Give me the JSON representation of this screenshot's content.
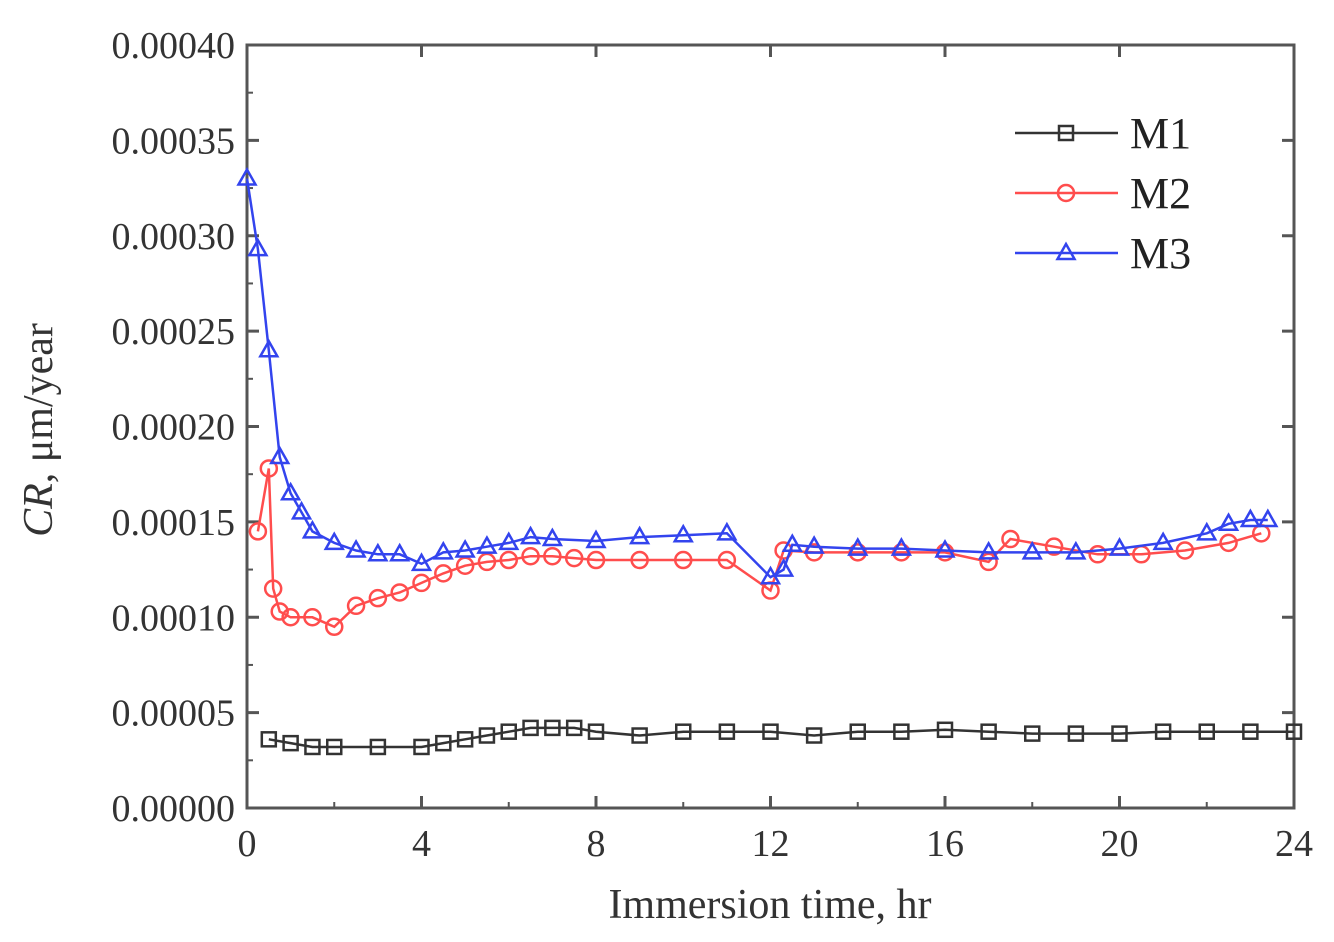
{
  "chart_data": {
    "type": "line",
    "xlabel": "Immersion time, hr",
    "ylabel_italic": "CR",
    "ylabel_rest": ", μm/year",
    "xlim": [
      0,
      24
    ],
    "ylim": [
      0,
      0.0004
    ],
    "x_ticks": [
      0,
      4,
      8,
      12,
      16,
      20,
      24
    ],
    "x_tick_labels": [
      "0",
      "4",
      "8",
      "12",
      "16",
      "20",
      "24"
    ],
    "y_ticks": [
      0,
      5e-05,
      0.0001,
      0.00015,
      0.0002,
      0.00025,
      0.0003,
      0.00035,
      0.0004
    ],
    "y_tick_labels": [
      "0.00000",
      "0.00005",
      "0.00010",
      "0.00015",
      "0.00020",
      "0.00025",
      "0.00030",
      "0.00035",
      "0.00040"
    ],
    "grid": false,
    "legend_position": "top-right",
    "series": [
      {
        "name": "M1",
        "color": "#333333",
        "marker": "square",
        "x": [
          0.5,
          1.0,
          1.5,
          2.0,
          3.0,
          4.0,
          4.5,
          5.0,
          5.5,
          6.0,
          6.5,
          7.0,
          7.5,
          8.0,
          9.0,
          10.0,
          11.0,
          12.0,
          13.0,
          14.0,
          15.0,
          16.0,
          17.0,
          18.0,
          19.0,
          20.0,
          21.0,
          22.0,
          23.0,
          24.0
        ],
        "y": [
          3.6e-05,
          3.4e-05,
          3.2e-05,
          3.2e-05,
          3.2e-05,
          3.2e-05,
          3.4e-05,
          3.6e-05,
          3.8e-05,
          4e-05,
          4.2e-05,
          4.2e-05,
          4.2e-05,
          4e-05,
          3.8e-05,
          4e-05,
          4e-05,
          4e-05,
          3.8e-05,
          4e-05,
          4e-05,
          4.1e-05,
          4e-05,
          3.9e-05,
          3.9e-05,
          3.9e-05,
          4e-05,
          4e-05,
          4e-05,
          4e-05
        ]
      },
      {
        "name": "M2",
        "color": "#ff4d4d",
        "marker": "circle",
        "x": [
          0.25,
          0.5,
          0.6,
          0.75,
          1.0,
          1.5,
          2.0,
          2.5,
          3.0,
          3.5,
          4.0,
          4.5,
          5.0,
          5.5,
          6.0,
          6.5,
          7.0,
          7.5,
          8.0,
          9.0,
          10.0,
          11.0,
          12.0,
          12.3,
          13.0,
          14.0,
          15.0,
          16.0,
          17.0,
          17.5,
          18.5,
          19.5,
          20.5,
          21.5,
          22.5,
          23.25
        ],
        "y": [
          0.000145,
          0.000178,
          0.000115,
          0.000103,
          0.0001,
          0.0001,
          9.5e-05,
          0.000106,
          0.00011,
          0.000113,
          0.000118,
          0.000123,
          0.000127,
          0.000129,
          0.00013,
          0.000132,
          0.000132,
          0.000131,
          0.00013,
          0.00013,
          0.00013,
          0.00013,
          0.000114,
          0.000135,
          0.000134,
          0.000134,
          0.000134,
          0.000134,
          0.000129,
          0.000141,
          0.000137,
          0.000133,
          0.000133,
          0.000135,
          0.000139,
          0.000144
        ]
      },
      {
        "name": "M3",
        "color": "#3344ee",
        "marker": "triangle",
        "x": [
          0.0,
          0.25,
          0.5,
          0.75,
          1.0,
          1.25,
          1.5,
          2.0,
          2.5,
          3.0,
          3.5,
          4.0,
          4.5,
          5.0,
          5.5,
          6.0,
          6.5,
          7.0,
          8.0,
          9.0,
          10.0,
          11.0,
          12.0,
          12.3,
          12.5,
          13.0,
          14.0,
          15.0,
          16.0,
          17.0,
          18.0,
          19.0,
          20.0,
          21.0,
          22.0,
          22.5,
          23.0,
          23.4
        ],
        "y": [
          0.00033,
          0.000293,
          0.00024,
          0.000184,
          0.000165,
          0.000155,
          0.000145,
          0.000139,
          0.000135,
          0.000133,
          0.000133,
          0.000128,
          0.000134,
          0.000135,
          0.000137,
          0.000139,
          0.000142,
          0.000141,
          0.00014,
          0.000142,
          0.000143,
          0.000144,
          0.000121,
          0.000125,
          0.000138,
          0.000137,
          0.000136,
          0.000136,
          0.000135,
          0.000134,
          0.000134,
          0.000134,
          0.000136,
          0.000139,
          0.000144,
          0.000149,
          0.000151,
          0.000151
        ]
      }
    ]
  }
}
